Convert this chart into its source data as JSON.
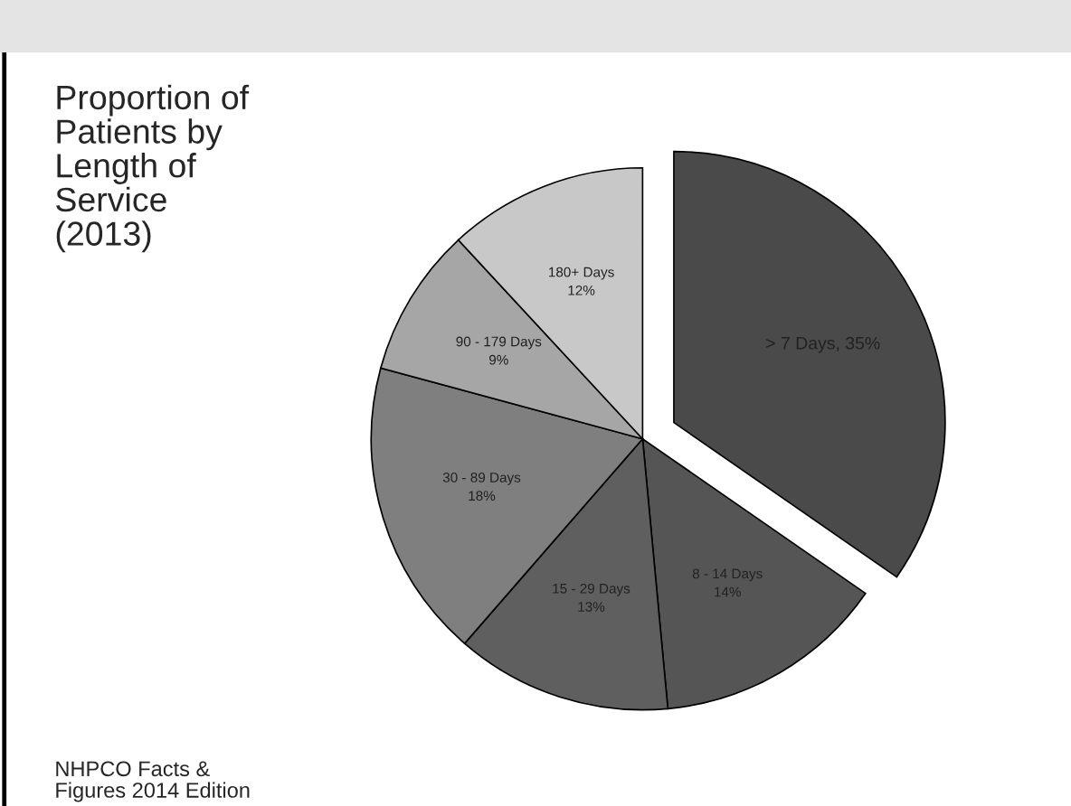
{
  "chart_data": {
    "type": "pie",
    "title": "Proportion of\nPatients by\nLength of\nService\n(2013)",
    "categories": [
      "> 7 Days",
      "8 - 14 Days",
      "15 - 29 Days",
      "30 - 89 Days",
      "90 - 179 Days",
      "180+ Days"
    ],
    "values": [
      35,
      14,
      13,
      18,
      9,
      12
    ],
    "value_labels": [
      "35%",
      "14%",
      "13%",
      "18%",
      "9%",
      "12%"
    ],
    "colors": [
      "#4a4a4a",
      "#555555",
      "#5f5f5f",
      "#7f7f7f",
      "#a6a6a6",
      "#c8c8c8"
    ],
    "annotations": [
      "NHPCO Facts &\nFigures 2014 Edition"
    ]
  }
}
